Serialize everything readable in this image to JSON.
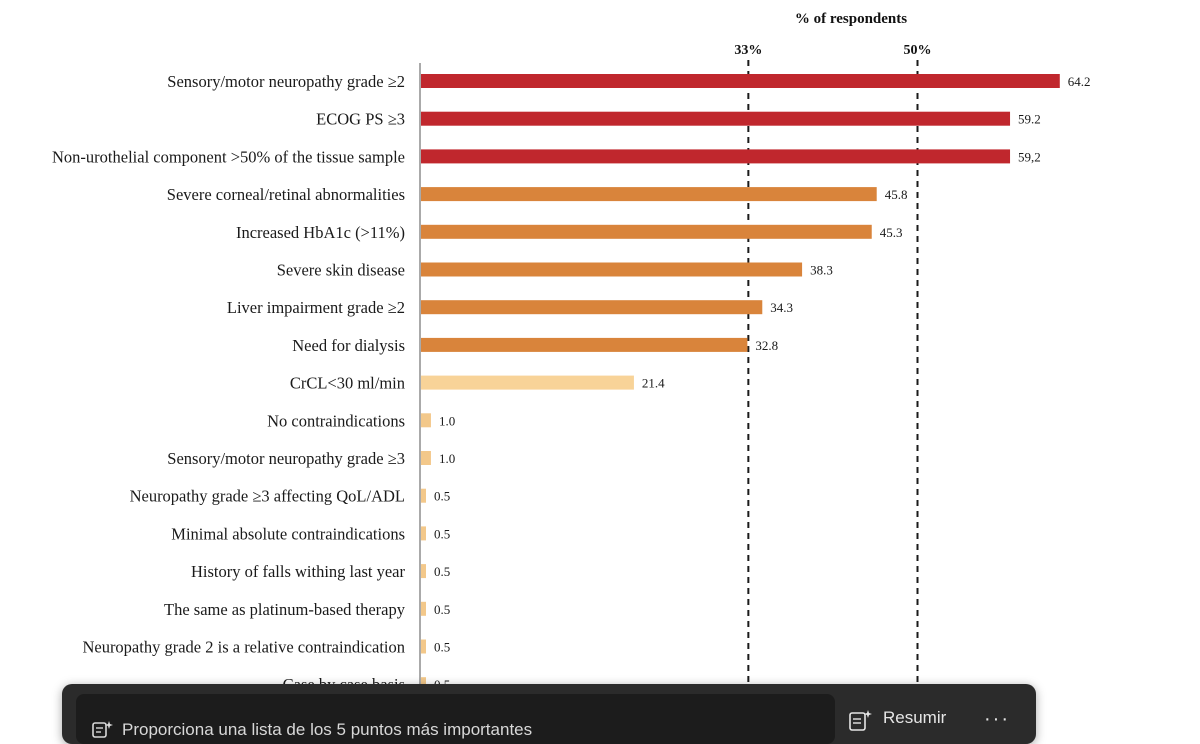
{
  "chart_data": {
    "type": "bar",
    "orientation": "horizontal",
    "title": "% of respondents",
    "reference_lines": [
      {
        "value": 33,
        "label": "33%"
      },
      {
        "value": 50,
        "label": "50%"
      }
    ],
    "categories": [
      "Sensory/motor neuropathy grade ≥2",
      "ECOG PS ≥3",
      "Non-urothelial component >50% of the tissue sample",
      "Severe corneal/retinal abnormalities",
      "Increased HbA1c (>11%)",
      "Severe skin disease",
      "Liver impairment grade ≥2",
      "Need for dialysis",
      "CrCL<30 ml/min",
      "No contraindications",
      "Sensory/motor neuropathy grade ≥3",
      "Neuropathy grade ≥3 affecting QoL/ADL",
      "Minimal absolute contraindications",
      "History of falls withing last year",
      "The same as platinum-based therapy",
      "Neuropathy grade 2 is a relative contraindication",
      "Case by case basis"
    ],
    "values": [
      64.2,
      59.2,
      59.2,
      45.8,
      45.3,
      38.3,
      34.3,
      32.8,
      21.4,
      1.0,
      1.0,
      0.5,
      0.5,
      0.5,
      0.5,
      0.5,
      0.5
    ],
    "value_labels": [
      "64.2",
      "59.2",
      "59,2",
      "45.8",
      "45.3",
      "38.3",
      "34.3",
      "32.8",
      "21.4",
      "1.0",
      "1.0",
      "0.5",
      "0.5",
      "0.5",
      "0.5",
      "0.5",
      "0.5"
    ],
    "colors": [
      "#c0272d",
      "#c0272d",
      "#c0272d",
      "#d9843b",
      "#d9843b",
      "#d9843b",
      "#d9843b",
      "#d9843b",
      "#f8d398",
      "#f3c88a",
      "#f3c88a",
      "#f3c88a",
      "#f3c88a",
      "#f3c88a",
      "#f3c88a",
      "#f3c88a",
      "#f3c88a"
    ],
    "xlim": [
      0,
      70
    ],
    "grid": false
  },
  "toolbar": {
    "prompt_text": "Proporciona una lista de los 5 puntos más importantes",
    "summarize_label": "Resumir",
    "more_label": "···",
    "prompt_icon": "sparkle-list-icon",
    "summarize_icon": "sparkle-doc-icon"
  }
}
